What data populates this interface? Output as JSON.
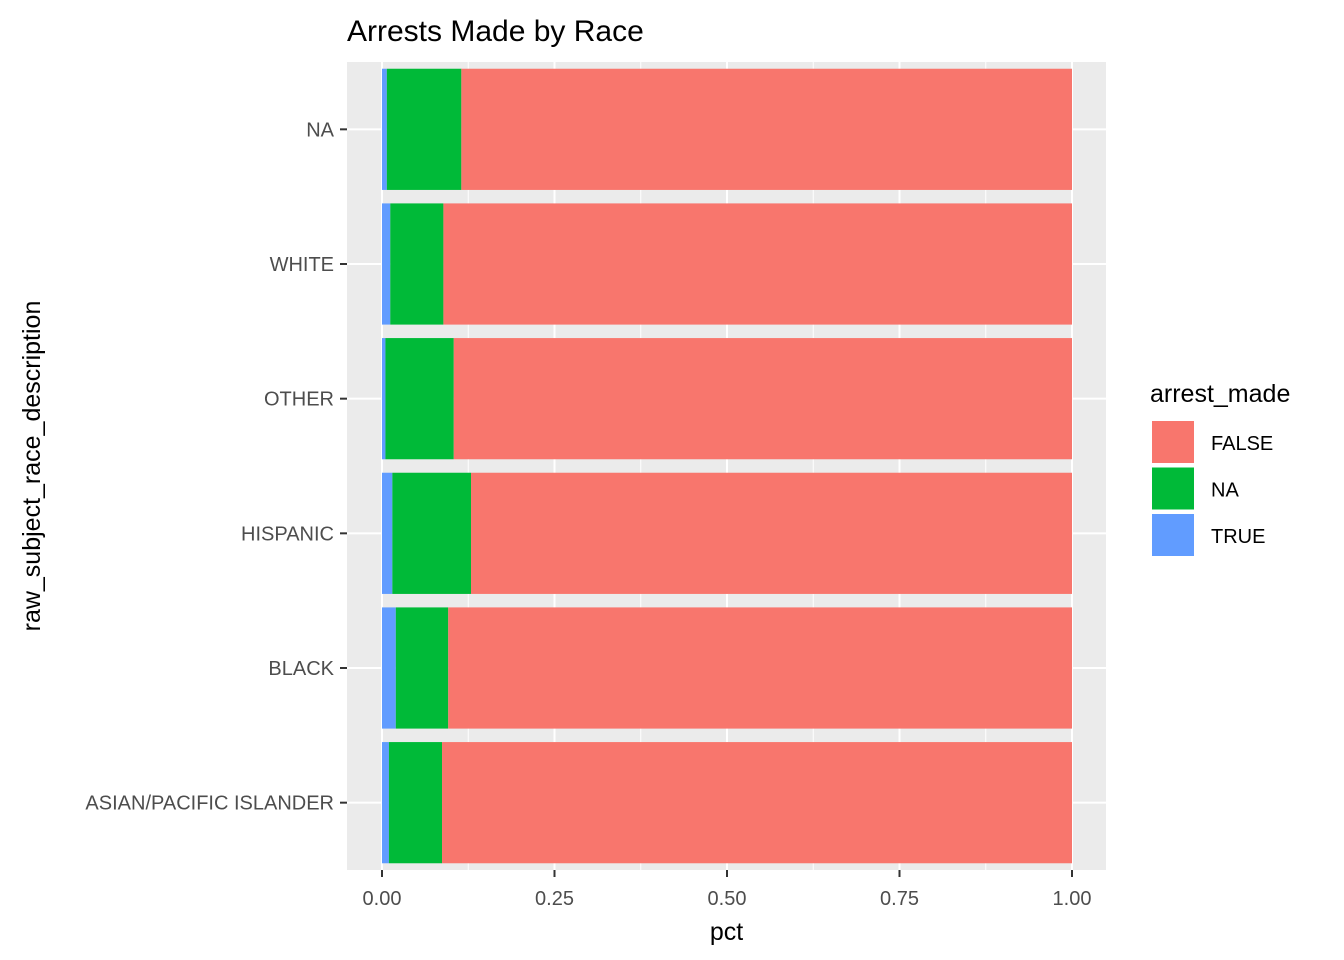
{
  "chart_data": {
    "type": "bar",
    "orientation": "horizontal",
    "stacked": true,
    "title": "Arrests Made by Race",
    "xlabel": "pct",
    "ylabel": "raw_subject_race_description",
    "xlim": [
      0,
      1
    ],
    "x_ticks": [
      0,
      0.25,
      0.5,
      0.75,
      1
    ],
    "x_tick_labels": [
      "0.00",
      "0.25",
      "0.50",
      "0.75",
      "1.00"
    ],
    "categories": [
      "ASIAN/PACIFIC ISLANDER",
      "BLACK",
      "HISPANIC",
      "OTHER",
      "WHITE",
      "NA"
    ],
    "series": [
      {
        "name": "TRUE",
        "color": "#619CFF",
        "values": [
          0.01,
          0.02,
          0.015,
          0.005,
          0.012,
          0.007
        ]
      },
      {
        "name": "NA",
        "color": "#00BA38",
        "values": [
          0.077,
          0.076,
          0.114,
          0.099,
          0.077,
          0.108
        ]
      },
      {
        "name": "FALSE",
        "color": "#F8766D",
        "values": [
          0.913,
          0.904,
          0.871,
          0.896,
          0.911,
          0.885
        ]
      }
    ],
    "legend": {
      "title": "arrest_made",
      "position": "right",
      "entries": [
        {
          "label": "FALSE",
          "color": "#F8766D"
        },
        {
          "label": "NA",
          "color": "#00BA38"
        },
        {
          "label": "TRUE",
          "color": "#619CFF"
        }
      ]
    },
    "grid": true,
    "panel_background": "#EBEBEB"
  }
}
